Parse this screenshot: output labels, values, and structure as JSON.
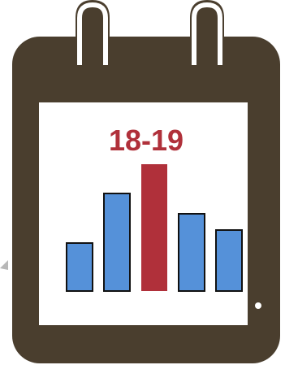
{
  "calendar_icon": {
    "label": "18-19",
    "colors": {
      "frame": "#4a3e2e",
      "page": "#ffffff",
      "ring_outline": "#ffffff",
      "label": "#b0303a",
      "bar_default": "#5591d9",
      "bar_highlight": "#b0303a",
      "bar_stroke": "#111111",
      "background": "#ffffff"
    },
    "bars": [
      {
        "value": 0.38,
        "highlight": false
      },
      {
        "value": 0.77,
        "highlight": false
      },
      {
        "value": 1.0,
        "highlight": true
      },
      {
        "value": 0.61,
        "highlight": false
      },
      {
        "value": 0.48,
        "highlight": false
      }
    ]
  }
}
